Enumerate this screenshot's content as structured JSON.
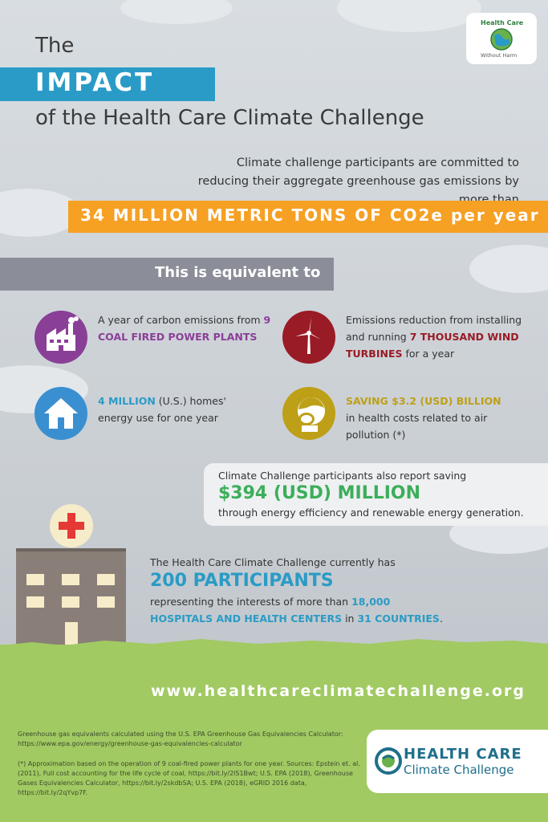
{
  "header": {
    "the": "The",
    "impact": "IMPACT",
    "subtitle": "of the Health Care Climate Challenge"
  },
  "top_logo": {
    "line1": "Health Care",
    "line2": "Without Harm"
  },
  "intro": {
    "text": "Climate challenge participants are committed to reducing their aggregate greenhouse gas emissions by more than",
    "highlight": "34 MILLION METRIC TONS OF CO2e per year"
  },
  "equivalent_heading": "This is equivalent to",
  "items": [
    {
      "pre": "A year of carbon emissions from ",
      "strong": "9 COAL FIRED POWER PLANTS",
      "post": ""
    },
    {
      "pre": "Emissions reduction from installing and running ",
      "strong": "7 THOUSAND WIND TURBINES",
      "post": " for a year"
    },
    {
      "pre": "",
      "strong": "4 MILLION",
      "post": " (U.S.) homes' energy use for one year"
    },
    {
      "pre": "",
      "strong": "SAVING $3.2 (USD) BILLION",
      "post": " in health costs related to air pollution (*)"
    }
  ],
  "savings": {
    "line1": "Climate Challenge participants also report saving",
    "amount": "$394 (USD) MILLION",
    "line3": "through energy efficiency and renewable energy generation."
  },
  "participants": {
    "line1": "The Health Care Climate Challenge currently has",
    "count": "200 PARTICIPANTS",
    "pre": "representing the interests of more than ",
    "hospitals": "18,000 HOSPITALS AND HEALTH CENTERS",
    "mid": " in ",
    "countries": "31 COUNTRIES",
    "end": "."
  },
  "url": "www.healthcareclimatechallenge.org",
  "footnotes": {
    "note1": "Greenhouse gas equivalents calculated using the U.S. EPA Greenhouse Gas Equivalencies Calculator: https://www.epa.gov/energy/greenhouse-gas-equivalencies-calculator",
    "note2": "(*) Approximation based on the operation of 9 coal-fired power plants for one year. Sources: Epstein et. al. (2011), Full cost accounting for the life cycle of coal, https://bit.ly/2lS1Bwt; U.S. EPA (2018), Greenhouse Gases Equivalencies Calculator, https://bit.ly/2skdbSA; U.S. EPA (2018), eGRID 2016 data, https://bit.ly/2qYvp7F."
  },
  "bottom_logo": {
    "line1": "HEALTH CARE",
    "line2": "Climate Challenge"
  },
  "icons": [
    "factory-icon",
    "wind-turbine-icon",
    "house-icon",
    "face-mask-icon",
    "hospital-icon",
    "cross-icon",
    "globe-icon"
  ],
  "colors": {
    "blue": "#2a9bc6",
    "orange": "#f6a024",
    "purple": "#8a3f97",
    "red": "#991b25",
    "gold": "#bda018",
    "green": "#3cae5a",
    "grass": "#a1ca63",
    "gray_bar": "#8b8e98"
  }
}
